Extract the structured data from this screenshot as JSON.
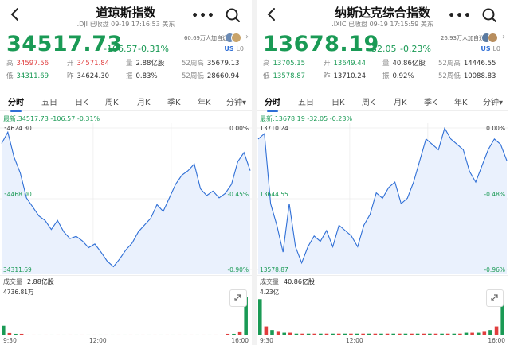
{
  "panels": [
    {
      "title": "道琼斯指数",
      "subtitle": ".DJI 已收盘 09-19 17:16:53 美东",
      "price": "34517.73",
      "change": "-106.57",
      "change_pct": "-0.31%",
      "followers": "60.69万人加自选",
      "market_tag": "US",
      "level_tag": "L0",
      "stats": {
        "high_label": "高",
        "high": "34597.56",
        "open_label": "开",
        "open": "34571.84",
        "volume_label": "量",
        "volume": "2.88亿股",
        "w52_high_label": "52周高",
        "w52_high": "35679.13",
        "low_label": "低",
        "low": "34311.69",
        "prev_label": "昨",
        "prev": "34624.30",
        "amp_label": "振",
        "amp": "0.83%",
        "w52_low_label": "52周低",
        "w52_low": "28660.94"
      },
      "latest_line": "最新:34517.73 -106.57 -0.31%",
      "y_labels": {
        "top": "34624.30",
        "top_pct": "0.00%",
        "mid": "34468.00",
        "mid_pct": "-0.45%",
        "bottom": "34311.69",
        "bottom_pct": "-0.90%"
      },
      "volume_label": "成交量",
      "volume_value": "2.88亿股",
      "volume_max": "4736.81万"
    },
    {
      "title": "纳斯达克综合指数",
      "subtitle": ".IXIC 已收盘 09-19 17:15:59 美东",
      "price": "13678.19",
      "change": "-32.05",
      "change_pct": "-0.23%",
      "followers": "26.93万人加自选",
      "market_tag": "US",
      "level_tag": "L0",
      "stats": {
        "high_label": "高",
        "high": "13705.15",
        "open_label": "开",
        "open": "13649.44",
        "volume_label": "量",
        "volume": "40.86亿股",
        "w52_high_label": "52周高",
        "w52_high": "14446.55",
        "low_label": "低",
        "low": "13578.87",
        "prev_label": "昨",
        "prev": "13710.24",
        "amp_label": "振",
        "amp": "0.92%",
        "w52_low_label": "52周低",
        "w52_low": "10088.83"
      },
      "latest_line": "最新:13678.19 -32.05 -0.23%",
      "y_labels": {
        "top": "13710.24",
        "top_pct": "0.00%",
        "mid": "13644.55",
        "mid_pct": "-0.48%",
        "bottom": "13578.87",
        "bottom_pct": "-0.96%"
      },
      "volume_label": "成交量",
      "volume_value": "40.86亿股",
      "volume_max": "4.23亿"
    }
  ],
  "tabs": [
    "分时",
    "五日",
    "日K",
    "周K",
    "月K",
    "季K",
    "年K",
    "分钟"
  ],
  "x_labels": [
    "9:30",
    "12:00",
    "16:00"
  ],
  "colors": {
    "down_green": "#1a9a55",
    "up_red": "#e03e3e",
    "line_blue": "#2f6fd6",
    "area_fill": "#eaf1fd",
    "grid": "#e6e6e6"
  },
  "icons": [
    "back-arrow-icon",
    "more-dots-icon",
    "search-icon",
    "chevron-right-icon",
    "expand-icon"
  ],
  "chart_data": [
    {
      "type": "line",
      "title": "道琼斯指数 分时",
      "xlabel": "",
      "ylabel": "",
      "x_ticks": [
        "9:30",
        "12:00",
        "16:00"
      ],
      "ylim": [
        34311.69,
        34624.3
      ],
      "prev_close": 34624.3,
      "values": [
        34590,
        34615,
        34560,
        34525,
        34470,
        34450,
        34430,
        34420,
        34400,
        34420,
        34395,
        34380,
        34385,
        34375,
        34360,
        34368,
        34350,
        34330,
        34318,
        34335,
        34355,
        34370,
        34395,
        34410,
        34425,
        34455,
        34440,
        34470,
        34500,
        34520,
        34530,
        34545,
        34490,
        34475,
        34485,
        34470,
        34480,
        34500,
        34550,
        34570,
        34530
      ],
      "volume": [
        12,
        3,
        2,
        2,
        1,
        1,
        1,
        1,
        1,
        1,
        1,
        1,
        1,
        1,
        1,
        1,
        1,
        1,
        1,
        1,
        1,
        1,
        1,
        1,
        1,
        1,
        1,
        1,
        1,
        1,
        1,
        1,
        1,
        1,
        1,
        1,
        1,
        2,
        2,
        4,
        47
      ]
    },
    {
      "type": "line",
      "title": "纳斯达克综合指数 分时",
      "xlabel": "",
      "ylabel": "",
      "x_ticks": [
        "9:30",
        "12:00",
        "16:00"
      ],
      "ylim": [
        13578.87,
        13710.24
      ],
      "prev_close": 13710.24,
      "values": [
        13700,
        13705,
        13640,
        13620,
        13595,
        13640,
        13600,
        13585,
        13600,
        13610,
        13605,
        13615,
        13600,
        13620,
        13615,
        13610,
        13600,
        13620,
        13630,
        13650,
        13645,
        13655,
        13660,
        13640,
        13645,
        13660,
        13680,
        13700,
        13695,
        13690,
        13710,
        13700,
        13695,
        13690,
        13670,
        13660,
        13675,
        13690,
        13700,
        13695,
        13680
      ],
      "volume": [
        40,
        10,
        6,
        4,
        3,
        3,
        2,
        2,
        2,
        2,
        2,
        2,
        2,
        2,
        2,
        2,
        2,
        2,
        2,
        2,
        2,
        2,
        2,
        2,
        2,
        2,
        2,
        2,
        2,
        2,
        2,
        2,
        2,
        2,
        3,
        3,
        3,
        4,
        6,
        10,
        42
      ]
    }
  ]
}
